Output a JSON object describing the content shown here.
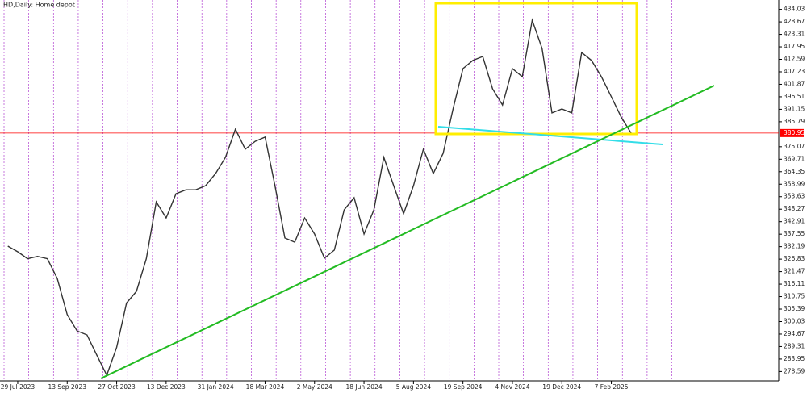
{
  "chart_data": {
    "type": "line",
    "title": "HD,Daily:  Home depot",
    "categories": [
      null,
      "29 Jul 2023",
      null,
      null,
      null,
      null,
      "13 Sep 2023",
      null,
      null,
      null,
      null,
      "27 Oct 2023",
      null,
      null,
      null,
      null,
      "13 Dec 2023",
      null,
      null,
      null,
      null,
      "31 Jan 2024",
      null,
      null,
      null,
      null,
      "18 Mar 2024",
      null,
      null,
      null,
      null,
      "2 May 2024",
      null,
      null,
      null,
      null,
      "18 Jun 2024",
      null,
      null,
      null,
      null,
      "5 Aug 2024",
      null,
      null,
      null,
      null,
      "19 Sep 2024",
      null,
      null,
      null,
      null,
      "4 Nov 2024",
      null,
      null,
      null,
      null,
      "19 Dec 2024",
      null,
      null,
      null,
      null,
      "7 Feb 2025",
      null,
      null
    ],
    "series": [
      {
        "color": "#333333",
        "values": [
          332.4,
          330,
          327,
          328,
          327,
          318.5,
          303,
          296,
          294.3,
          285.6,
          277,
          289,
          308,
          313,
          327,
          351.4,
          344.5,
          354.9,
          356.6,
          356.6,
          358.4,
          363.6,
          370.5,
          382.6,
          374,
          377.4,
          379.2,
          358.4,
          335.9,
          334.1,
          344.5,
          337.6,
          327.2,
          330.7,
          348,
          353.2,
          337.6,
          348,
          370.5,
          358.4,
          346.3,
          358.4,
          374,
          363.6,
          372.2,
          391.3,
          408.6,
          412.1,
          413.8,
          399.9,
          393,
          408.6,
          405.1,
          429.4,
          417.3,
          389.6,
          391.3,
          389.6,
          415.5,
          412.1,
          405.1,
          396.5,
          387.8,
          380.9
        ]
      }
    ],
    "ylim": [
      274.57,
      438.05
    ],
    "yticks": [
      434.03,
      428.67,
      423.31,
      417.95,
      412.59,
      407.23,
      401.87,
      396.51,
      391.15,
      385.79,
      375.07,
      369.71,
      364.35,
      358.99,
      353.63,
      348.27,
      342.91,
      337.55,
      332.19,
      326.83,
      321.47,
      316.11,
      310.75,
      305.39,
      300.03,
      294.67,
      289.31,
      283.95,
      278.59
    ],
    "price_line": 380.95,
    "price_line_color": "#ff0000",
    "grid": true
  }
}
